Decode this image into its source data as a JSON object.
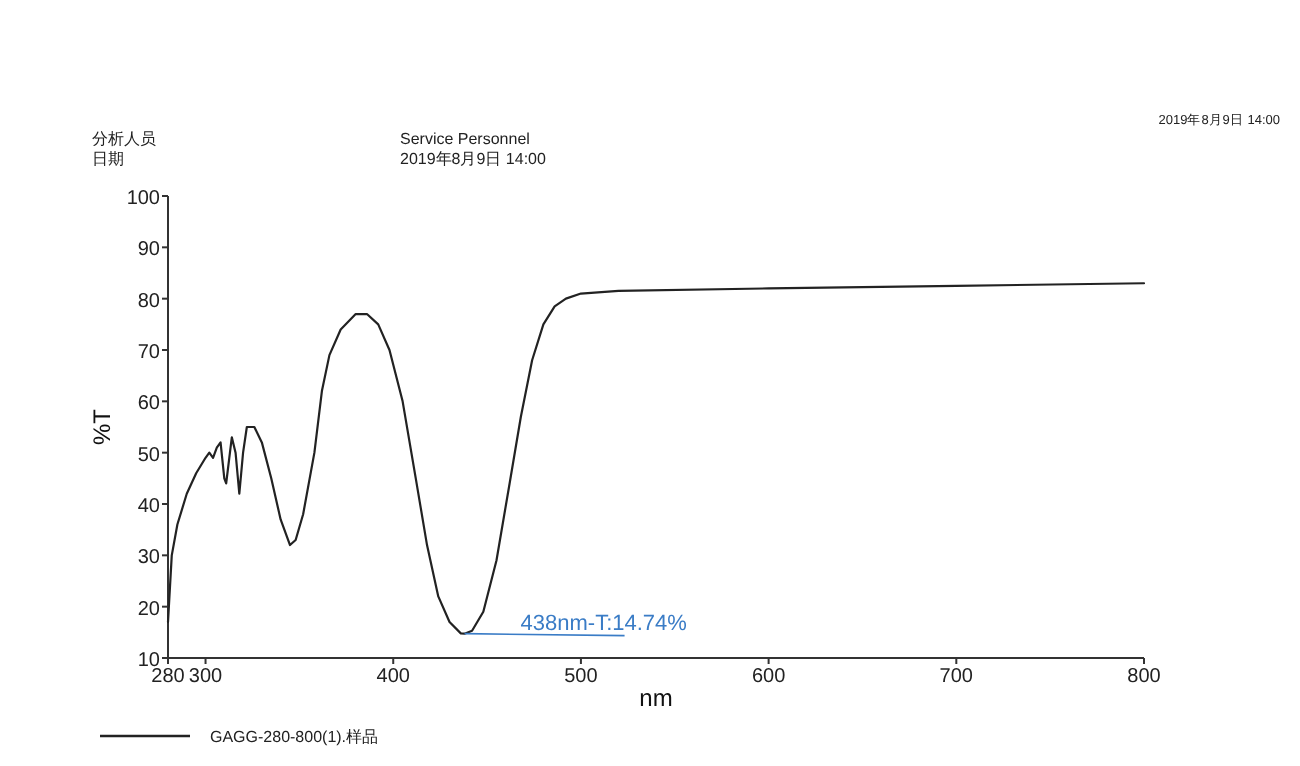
{
  "chart_data": {
    "type": "line",
    "xlabel": "nm",
    "ylabel": "%T",
    "xlim": [
      280,
      800
    ],
    "ylim": [
      10,
      100
    ],
    "xticks": [
      280,
      300,
      400,
      500,
      600,
      700,
      800
    ],
    "yticks": [
      10,
      20,
      30,
      40,
      50,
      60,
      70,
      80,
      90,
      100
    ],
    "grid": false,
    "legend": "bottom left",
    "marker": "none",
    "line_style": "solid",
    "annotations": [
      "2019年8月9日 14:00",
      "分析人员",
      "Service Personnel",
      "日期",
      "2019年8月9日 14:00",
      {
        "text": "438nm-T:14.74%",
        "x": 438,
        "y": 14.74
      }
    ],
    "series": [
      {
        "name": "GAGG-280-800(1).样品",
        "color": "#222222",
        "x": [
          280,
          282,
          285,
          290,
          295,
          300,
          302,
          304,
          306,
          308,
          310,
          311,
          313,
          314,
          316,
          318,
          320,
          322,
          326,
          330,
          335,
          340,
          345,
          348,
          352,
          358,
          362,
          366,
          372,
          380,
          386,
          392,
          398,
          405,
          412,
          418,
          424,
          430,
          436,
          438,
          442,
          448,
          455,
          462,
          468,
          474,
          480,
          486,
          492,
          500,
          520,
          600,
          700,
          800
        ],
        "values": [
          17,
          30,
          36,
          42,
          46,
          49,
          50,
          49,
          51,
          52,
          45,
          44,
          50,
          53,
          50,
          42,
          50,
          55,
          55,
          52,
          45,
          37,
          32,
          33,
          38,
          50,
          62,
          69,
          74,
          77,
          77,
          75,
          70,
          60,
          45,
          32,
          22,
          17,
          14.8,
          14.74,
          15.3,
          19,
          29,
          44,
          57,
          68,
          75,
          78.5,
          80,
          81,
          81.5,
          82,
          82.5,
          83
        ]
      }
    ]
  }
}
